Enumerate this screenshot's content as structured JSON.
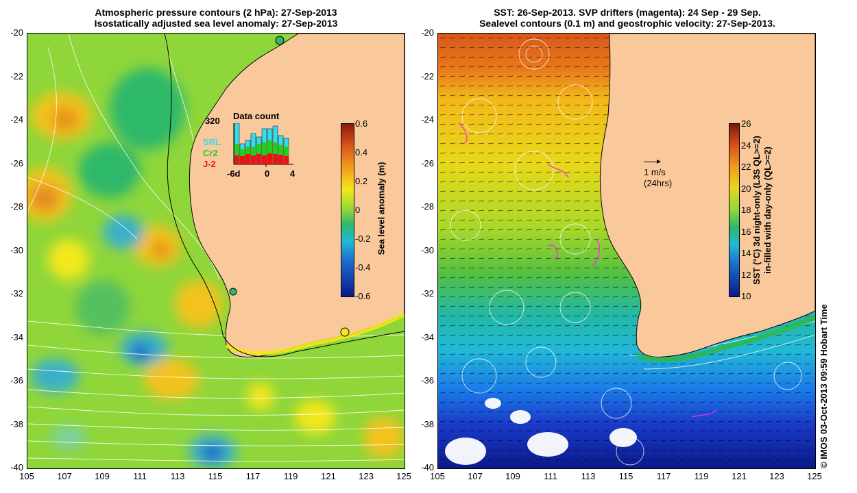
{
  "left_panel": {
    "title_line1": "Atmospheric pressure contours (2 hPa): 27-Sep-2013",
    "title_line2": "Isostatically adjusted sea level anomaly: 27-Sep-2013",
    "y_ticks": [
      "-20",
      "-22",
      "-24",
      "-26",
      "-28",
      "-30",
      "-32",
      "-34",
      "-36",
      "-38",
      "-40"
    ],
    "x_ticks": [
      "105",
      "107",
      "109",
      "111",
      "113",
      "115",
      "117",
      "119",
      "121",
      "123",
      "125"
    ],
    "colorbar_label": "Sea level anomaly (m)",
    "colorbar_ticks": [
      "0.6",
      "0.4",
      "0.2",
      "0",
      "-0.2",
      "-0.4",
      "-0.6"
    ],
    "inset": {
      "title": "Data count",
      "y_max": "320",
      "x_ticks": [
        "-6d",
        "0",
        "4"
      ],
      "legend": [
        {
          "name": "SRL",
          "color": "#33ddee"
        },
        {
          "name": "Cr2",
          "color": "#22cc22"
        },
        {
          "name": "J-2",
          "color": "#ee1111"
        }
      ]
    }
  },
  "right_panel": {
    "title_line1": "SST: 26-Sep-2013. SVP drifters (magenta): 24 Sep - 29 Sep.",
    "title_line2": "Sealevel contours (0.1 m) and geostrophic velocity: 27-Sep-2013.",
    "y_ticks": [
      "-20",
      "-22",
      "-24",
      "-26",
      "-28",
      "-30",
      "-32",
      "-34",
      "-36",
      "-38",
      "-40"
    ],
    "x_ticks": [
      "105",
      "107",
      "109",
      "111",
      "113",
      "115",
      "117",
      "119",
      "121",
      "123",
      "125"
    ],
    "colorbar_label_line1": "SST (°C) 3d night-only (L3S QL>=2)",
    "colorbar_label_line2": "in-filled with day-only (QL>=2)",
    "colorbar_ticks": [
      "26",
      "24",
      "22",
      "20",
      "18",
      "16",
      "14",
      "12",
      "10"
    ],
    "velocity_scale": "1 m/s",
    "velocity_scale_sub": "(24hrs)"
  },
  "credit": "© IMOS 03-Oct-2013 09:59 Hobart Time",
  "colors": {
    "land": "#f9c89b",
    "coast": "#000000"
  }
}
